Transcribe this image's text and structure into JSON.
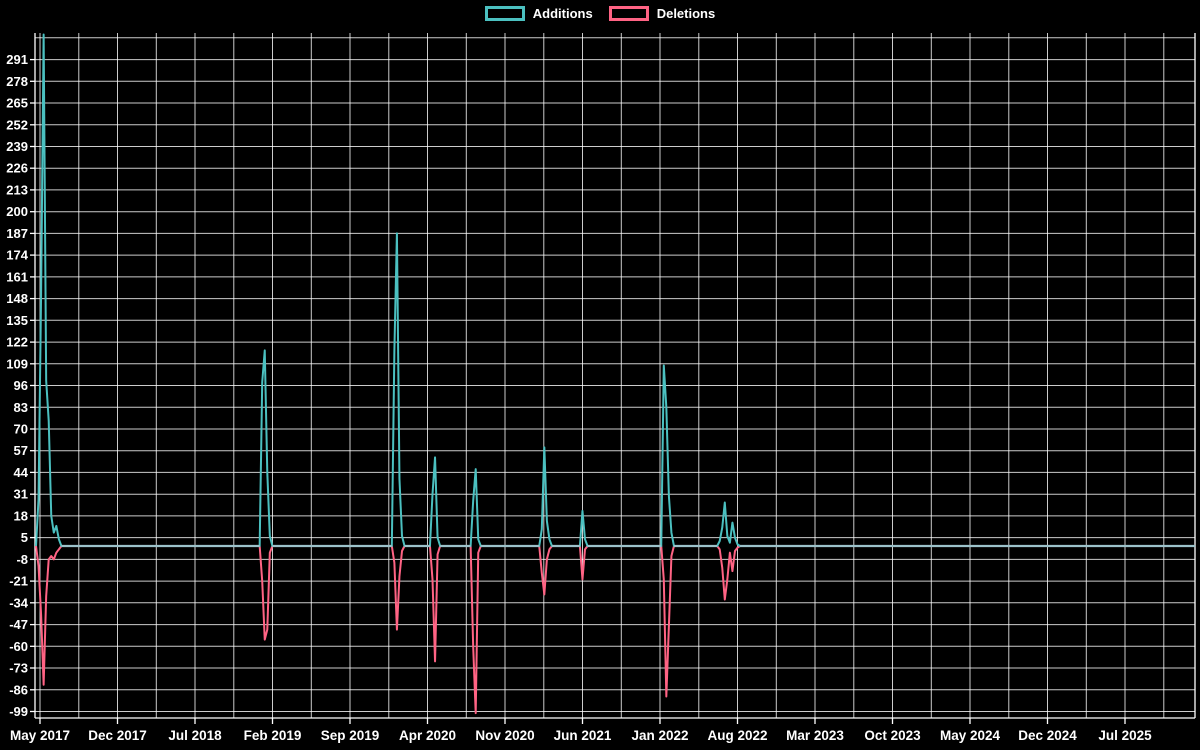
{
  "chart_data": {
    "type": "line",
    "title": "",
    "xlabel": "",
    "ylabel": "",
    "grid": true,
    "legend_position": "top",
    "background_color": "#000000",
    "gridline_color": "#ffffff",
    "zero_overlap_color": "#9cc2ca",
    "series": [
      {
        "name": "Additions",
        "color": "#4bc0c0"
      },
      {
        "name": "Deletions",
        "color": "#ff6384"
      }
    ],
    "x_axis": {
      "unit": "week",
      "tick_labels": [
        "May 2017",
        "Dec 2017",
        "Jul 2018",
        "Feb 2019",
        "Sep 2019",
        "Apr 2020",
        "Nov 2020",
        "Jun 2021",
        "Jan 2022",
        "Aug 2022",
        "Mar 2023",
        "Oct 2023",
        "May 2024",
        "Dec 2024",
        "Jul 2025"
      ]
    },
    "y_axis": {
      "tick_min": -99,
      "tick_max": 291,
      "tick_step": 13,
      "range": [
        -103,
        307
      ]
    },
    "weeks_total": 457,
    "week_points": {
      "columns": [
        "week_index",
        "additions",
        "deletions"
      ],
      "note": "all weeks not listed have 0 additions and 0 deletions",
      "rows": [
        [
          1,
          28,
          -12
        ],
        [
          2,
          150,
          -41
        ],
        [
          3,
          306,
          -83
        ],
        [
          4,
          99,
          -30
        ],
        [
          5,
          75,
          -8
        ],
        [
          6,
          18,
          -6
        ],
        [
          7,
          8,
          -8
        ],
        [
          8,
          12,
          -4
        ],
        [
          9,
          4,
          -2
        ],
        [
          89,
          98,
          -21
        ],
        [
          90,
          117,
          -56
        ],
        [
          91,
          44,
          -50
        ],
        [
          92,
          6,
          -4
        ],
        [
          141,
          117,
          -10
        ],
        [
          142,
          187,
          -50
        ],
        [
          143,
          40,
          -18
        ],
        [
          144,
          6,
          -3
        ],
        [
          156,
          31,
          -20
        ],
        [
          157,
          53,
          -69
        ],
        [
          158,
          5,
          -5
        ],
        [
          172,
          27,
          -60
        ],
        [
          173,
          46,
          -100
        ],
        [
          174,
          4,
          -4
        ],
        [
          199,
          10,
          -16
        ],
        [
          200,
          59,
          -29
        ],
        [
          201,
          15,
          -8
        ],
        [
          202,
          4,
          -2
        ],
        [
          215,
          21,
          -20
        ],
        [
          216,
          4,
          -2
        ],
        [
          247,
          108,
          -20
        ],
        [
          248,
          83,
          -90
        ],
        [
          249,
          30,
          -48
        ],
        [
          250,
          8,
          -6
        ],
        [
          269,
          3,
          -2
        ],
        [
          270,
          11,
          -13
        ],
        [
          271,
          26,
          -32
        ],
        [
          272,
          6,
          -20
        ],
        [
          273,
          2,
          -4
        ],
        [
          274,
          14,
          -15
        ],
        [
          275,
          5,
          -3
        ],
        [
          276,
          1,
          -1
        ]
      ]
    }
  }
}
